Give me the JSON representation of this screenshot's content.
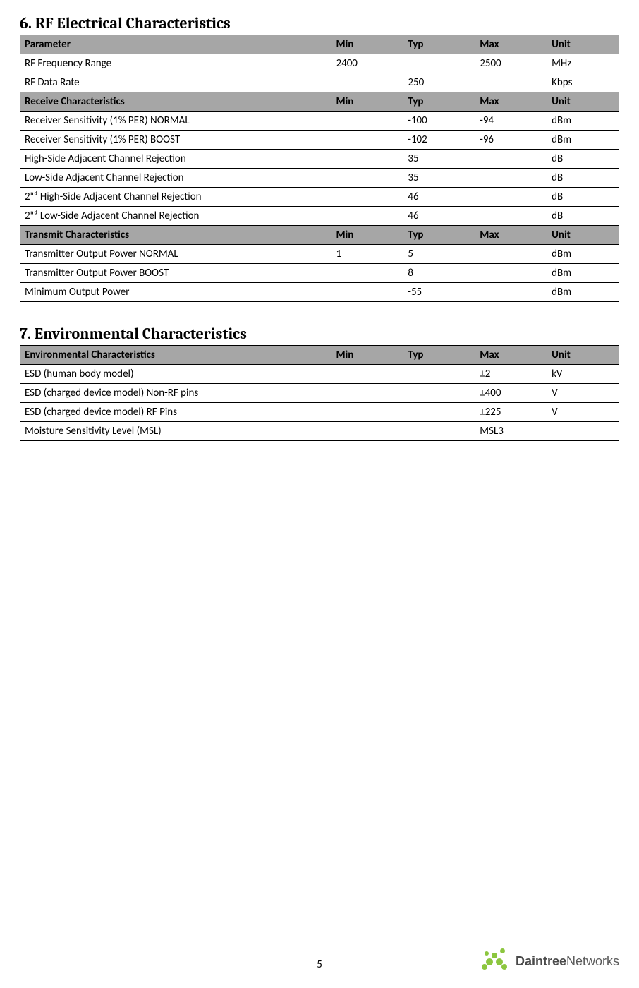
{
  "section6": {
    "title": "6. RF Electrical Characteristics",
    "headers": [
      {
        "p": "Parameter",
        "min": "Min",
        "typ": "Typ",
        "max": "Max",
        "unit": "Unit"
      },
      {
        "p": "Receive Characteristics",
        "min": "Min",
        "typ": "Typ",
        "max": "Max",
        "unit": "Unit"
      },
      {
        "p": "Transmit Characteristics",
        "min": "Min",
        "typ": "Typ",
        "max": "Max",
        "unit": "Unit"
      }
    ],
    "rows_a": [
      {
        "p": "RF Frequency Range",
        "min": "2400",
        "typ": "",
        "max": "2500",
        "unit": "MHz"
      },
      {
        "p": "RF Data Rate",
        "min": "",
        "typ": "250",
        "max": "",
        "unit": "Kbps"
      }
    ],
    "rows_b": [
      {
        "p": "Receiver Sensitivity (1% PER) NORMAL",
        "min": "",
        "typ": "-100",
        "max": "-94",
        "unit": "dBm"
      },
      {
        "p": "Receiver Sensitivity (1% PER) BOOST",
        "min": "",
        "typ": "-102",
        "max": "-96",
        "unit": "dBm"
      },
      {
        "p": "High-Side Adjacent Channel Rejection",
        "min": "",
        "typ": "35",
        "max": "",
        "unit": "dB"
      },
      {
        "p": "Low-Side Adjacent Channel Rejection",
        "min": "",
        "typ": "35",
        "max": "",
        "unit": "dB"
      },
      {
        "p": "2ⁿᵈ High-Side Adjacent Channel Rejection",
        "min": "",
        "typ": "46",
        "max": "",
        "unit": "dB"
      },
      {
        "p": "2ⁿᵈ Low-Side Adjacent Channel Rejection",
        "min": "",
        "typ": "46",
        "max": "",
        "unit": "dB"
      }
    ],
    "rows_c": [
      {
        "p": "Transmitter Output Power NORMAL",
        "min": "1",
        "typ": "5",
        "max": "",
        "unit": "dBm"
      },
      {
        "p": "Transmitter Output Power BOOST",
        "min": "",
        "typ": "8",
        "max": "",
        "unit": "dBm"
      },
      {
        "p": "Minimum Output Power",
        "min": "",
        "typ": "-55",
        "max": "",
        "unit": "dBm"
      }
    ]
  },
  "section7": {
    "title": "7. Environmental Characteristics",
    "header": {
      "p": "Environmental Characteristics",
      "min": "Min",
      "typ": "Typ",
      "max": "Max",
      "unit": "Unit"
    },
    "rows": [
      {
        "p": "ESD (human body model)",
        "min": "",
        "typ": "",
        "max": "±2",
        "unit": "kV"
      },
      {
        "p": "ESD (charged device model) Non-RF pins",
        "min": "",
        "typ": "",
        "max": "±400",
        "unit": "V"
      },
      {
        "p": "ESD (charged device model) RF Pins",
        "min": "",
        "typ": "",
        "max": "±225",
        "unit": "V"
      },
      {
        "p": "Moisture Sensitivity Level (MSL)",
        "min": "",
        "typ": "",
        "max": "MSL3",
        "unit": ""
      }
    ]
  },
  "footer": {
    "page": "5",
    "logo_main": "Daintree",
    "logo_sub": "Networks"
  },
  "colors": {
    "header_bg": "#a6a6a6",
    "border": "#000000",
    "logo_green": "#8cc63f"
  }
}
